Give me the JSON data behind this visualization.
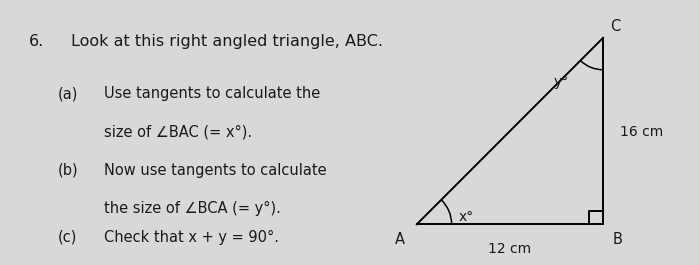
{
  "background_color": "#d8d8d8",
  "text_color": "#1a1a1a",
  "question_number": "6.",
  "title_text": "Look at this right angled triangle, ABC.",
  "parts": [
    {
      "label": "(a)",
      "line1": "Use tangents to calculate the",
      "line2": "size of ∠BAC (= x°)."
    },
    {
      "label": "(b)",
      "line1": "Now use tangents to calculate",
      "line2": "the size of ∠BCA (= y°)."
    },
    {
      "label": "(c)",
      "line1": "Check that x + y = 90°.",
      "line2": null
    }
  ],
  "triangle": {
    "AB_label": "12 cm",
    "BC_label": "16 cm",
    "angle_A_label": "x°",
    "angle_C_label": "y°"
  },
  "title_fontsize": 11.5,
  "body_fontsize": 10.5,
  "tri_fontsize": 10.0,
  "tri_label_fontsize": 10.5,
  "number_fontsize": 11.5
}
